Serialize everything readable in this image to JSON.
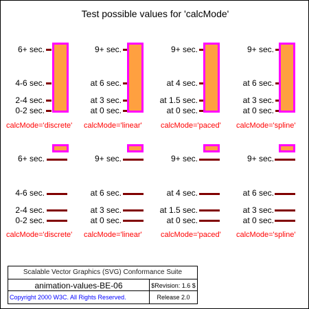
{
  "title": "Test possible values for 'calcMode'",
  "colors": {
    "tick": "#800000",
    "bar_fill": "#ffa040",
    "bar_stroke": "#ff00ff",
    "mode_label": "#ff0000",
    "copyright_text": "#0000ff"
  },
  "rows": [
    {
      "groups": [
        {
          "labels": {
            "top": "6+ sec.",
            "mid_high": "4-6 sec.",
            "mid_low": "2-4 sec.",
            "bottom": "0-2 sec."
          },
          "mode_label": "calcMode='discrete'"
        },
        {
          "labels": {
            "top": "9+ sec.",
            "mid_high": "at 6 sec.",
            "mid_low": "at 3 sec.",
            "bottom": "at 0 sec."
          },
          "mode_label": "calcMode='linear'"
        },
        {
          "labels": {
            "top": "9+ sec.",
            "mid_high": "at 4 sec.",
            "mid_low": "at 1.5 sec.",
            "bottom": "at 0 sec."
          },
          "mode_label": "calcMode='paced'"
        },
        {
          "labels": {
            "top": "9+ sec.",
            "mid_high": "at 6 sec.",
            "mid_low": "at 3 sec.",
            "bottom": "at 0 sec."
          },
          "mode_label": "calcMode='spline'"
        }
      ]
    },
    {
      "groups": [
        {
          "labels": {
            "top": "6+ sec.",
            "mid_high": "4-6 sec.",
            "mid_low": "2-4 sec.",
            "bottom": "0-2 sec."
          },
          "mode_label": "calcMode='discrete'"
        },
        {
          "labels": {
            "top": "9+ sec.",
            "mid_high": "at 6 sec.",
            "mid_low": "at 3 sec.",
            "bottom": "at 0 sec."
          },
          "mode_label": "calcMode='linear'"
        },
        {
          "labels": {
            "top": "9+ sec.",
            "mid_high": "at 4 sec.",
            "mid_low": "at 1.5 sec.",
            "bottom": "at 0 sec."
          },
          "mode_label": "calcMode='paced'"
        },
        {
          "labels": {
            "top": "9+ sec.",
            "mid_high": "at 6 sec.",
            "mid_low": "at 3 sec.",
            "bottom": "at 0 sec."
          },
          "mode_label": "calcMode='spline'"
        }
      ]
    }
  ],
  "footer": {
    "suite": "Scalable Vector Graphics (SVG) Conformance Suite",
    "test_name": "animation-values-BE-06",
    "revision": "$Revision: 1.6 $",
    "copyright": "Copyright 2000 W3C. All Rights Reserved.",
    "release": "Release 2.0"
  }
}
